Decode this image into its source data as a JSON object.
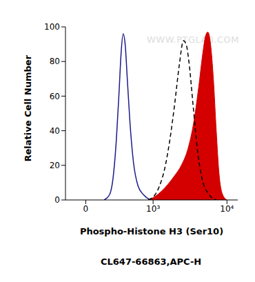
{
  "chart_data": {
    "type": "histogram",
    "x_label": "Phospho-Histone H3 (Ser10)",
    "y_label": "Relative Cell Number",
    "caption": "CL647-66863,APC-H",
    "watermark": "WWW.PTGLAB.COM",
    "xlim": [
      -130,
      13800
    ],
    "xticks": [
      0,
      {
        "value": 1000,
        "label": "10³"
      },
      {
        "value": 10000,
        "label": "10⁴"
      }
    ],
    "ylim": [
      0,
      100
    ],
    "yticks": [
      0,
      20,
      40,
      60,
      80,
      100
    ],
    "grid": false,
    "series": [
      {
        "type": "line",
        "color": "#1b1b8a",
        "line_style": "solid",
        "x": [
          115,
          162,
          196,
          234,
          266,
          293,
          320,
          350,
          383,
          427,
          490,
          586,
          716,
          910
        ],
        "values": [
          0,
          3,
          12,
          35,
          62,
          85,
          96,
          90,
          70,
          45,
          22,
          8,
          3,
          0
        ]
      },
      {
        "type": "line",
        "color": "#000000",
        "line_style": "dashed",
        "x": [
          848,
          1066,
          1238,
          1468,
          1741,
          2020,
          2345,
          2667,
          2900,
          3160,
          3590,
          4080,
          4740,
          5870,
          7260
        ],
        "values": [
          0,
          3,
          8,
          18,
          35,
          55,
          78,
          92,
          90,
          80,
          55,
          30,
          12,
          3,
          0
        ]
      },
      {
        "type": "area",
        "color": "#d40000",
        "line_style": "solid",
        "x": [
          848,
          1066,
          1320,
          1630,
          2020,
          2500,
          3090,
          3670,
          4260,
          4840,
          5270,
          5630,
          6120,
          6660,
          7260,
          7900,
          8810,
          10000
        ],
        "values": [
          0,
          2,
          5,
          9,
          14,
          20,
          30,
          45,
          65,
          85,
          95,
          97,
          90,
          70,
          40,
          15,
          3,
          0
        ]
      }
    ]
  }
}
